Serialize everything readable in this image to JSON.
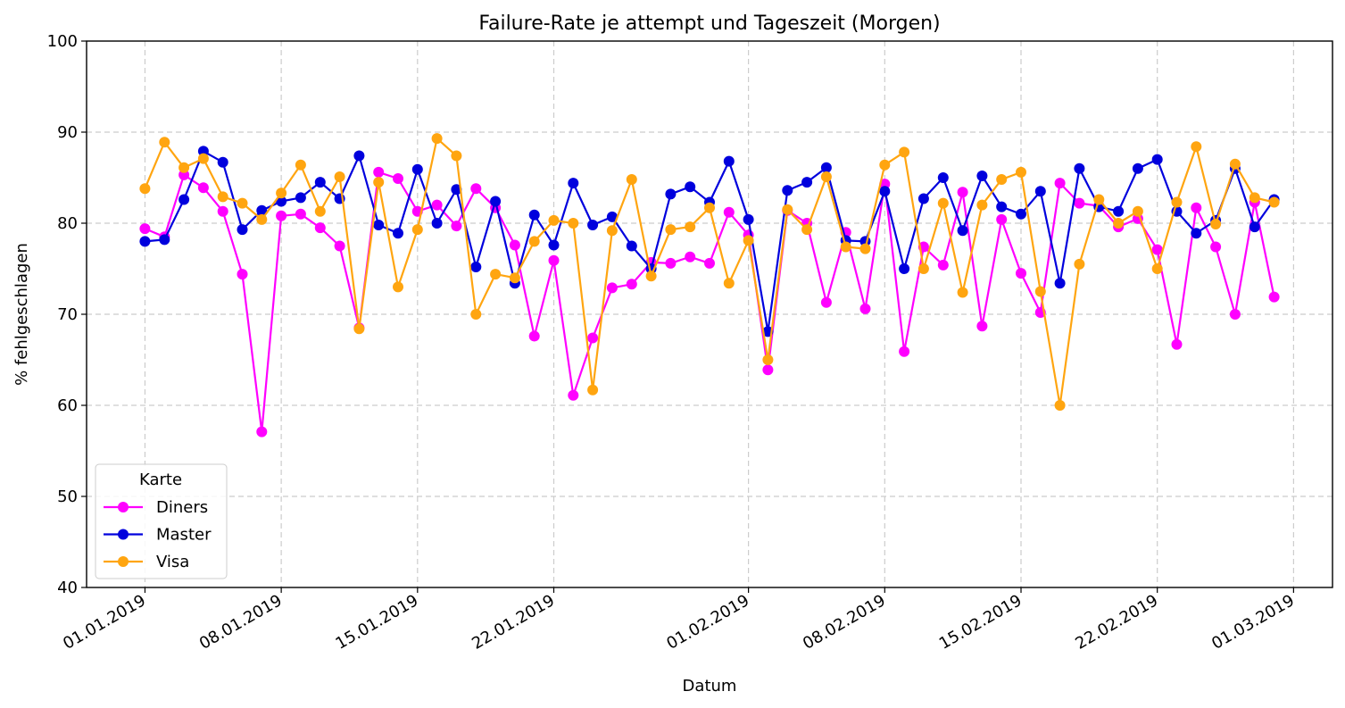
{
  "chart_data": {
    "type": "line",
    "title": "Failure-Rate je attempt und Tageszeit (Morgen)",
    "xlabel": "Datum",
    "ylabel": "% fehlgeschlagen",
    "ylim": [
      40,
      100
    ],
    "yticks": [
      40,
      50,
      60,
      70,
      80,
      90,
      100
    ],
    "xlim": [
      "2018-12-29",
      "2019-03-03"
    ],
    "xticks": [
      {
        "date": "2019-01-01",
        "label": "01.01.2019"
      },
      {
        "date": "2019-01-08",
        "label": "08.01.2019"
      },
      {
        "date": "2019-01-15",
        "label": "15.01.2019"
      },
      {
        "date": "2019-01-22",
        "label": "22.01.2019"
      },
      {
        "date": "2019-02-01",
        "label": "01.02.2019"
      },
      {
        "date": "2019-02-08",
        "label": "08.02.2019"
      },
      {
        "date": "2019-02-15",
        "label": "15.02.2019"
      },
      {
        "date": "2019-02-22",
        "label": "22.02.2019"
      },
      {
        "date": "2019-03-01",
        "label": "01.03.2019"
      }
    ],
    "grid": true,
    "legend": {
      "title": "Karte",
      "placement": "lower-left"
    },
    "x": [
      "2019-01-01",
      "2019-01-02",
      "2019-01-03",
      "2019-01-04",
      "2019-01-05",
      "2019-01-06",
      "2019-01-07",
      "2019-01-08",
      "2019-01-09",
      "2019-01-10",
      "2019-01-11",
      "2019-01-12",
      "2019-01-13",
      "2019-01-14",
      "2019-01-15",
      "2019-01-16",
      "2019-01-17",
      "2019-01-18",
      "2019-01-19",
      "2019-01-20",
      "2019-01-21",
      "2019-01-22",
      "2019-01-23",
      "2019-01-24",
      "2019-01-25",
      "2019-01-26",
      "2019-01-27",
      "2019-01-28",
      "2019-01-29",
      "2019-01-30",
      "2019-01-31",
      "2019-02-01",
      "2019-02-02",
      "2019-02-03",
      "2019-02-04",
      "2019-02-05",
      "2019-02-06",
      "2019-02-07",
      "2019-02-08",
      "2019-02-09",
      "2019-02-10",
      "2019-02-11",
      "2019-02-12",
      "2019-02-13",
      "2019-02-14",
      "2019-02-15",
      "2019-02-16",
      "2019-02-17",
      "2019-02-18",
      "2019-02-19",
      "2019-02-20",
      "2019-02-21",
      "2019-02-22",
      "2019-02-23",
      "2019-02-24",
      "2019-02-25",
      "2019-02-26",
      "2019-02-27",
      "2019-02-28"
    ],
    "series": [
      {
        "name": "Diners",
        "color": "#ff00ff",
        "values": [
          79.4,
          78.5,
          85.3,
          83.9,
          81.3,
          74.4,
          57.1,
          80.8,
          81.0,
          79.5,
          77.5,
          68.5,
          85.6,
          84.9,
          81.3,
          82.0,
          79.7,
          83.8,
          81.7,
          77.6,
          67.6,
          75.9,
          61.1,
          67.4,
          72.9,
          73.3,
          75.7,
          75.6,
          76.3,
          75.6,
          81.2,
          78.7,
          63.9,
          81.4,
          80.0,
          71.3,
          79.0,
          70.6,
          84.3,
          65.9,
          77.4,
          75.4,
          83.4,
          68.7,
          80.4,
          74.5,
          70.2,
          84.4,
          82.2,
          81.9,
          79.6,
          80.5,
          77.1,
          66.7,
          81.7,
          77.4,
          70.0,
          82.3,
          71.9
        ]
      },
      {
        "name": "Master",
        "color": "#0000dd",
        "values": [
          78.0,
          78.2,
          82.6,
          87.9,
          86.7,
          79.3,
          81.4,
          82.4,
          82.8,
          84.5,
          82.7,
          87.4,
          79.8,
          78.9,
          85.9,
          80.0,
          83.7,
          75.2,
          82.4,
          73.4,
          80.9,
          77.6,
          84.4,
          79.8,
          80.7,
          77.5,
          75.0,
          83.2,
          84.0,
          82.3,
          86.8,
          80.4,
          68.1,
          83.6,
          84.5,
          86.1,
          78.1,
          78.0,
          83.5,
          75.0,
          82.7,
          85.0,
          79.2,
          85.2,
          81.8,
          81.0,
          83.5,
          73.4,
          86.0,
          81.8,
          81.3,
          86.0,
          87.0,
          81.3,
          78.9,
          80.3,
          86.0,
          79.6,
          82.6
        ]
      },
      {
        "name": "Visa",
        "color": "#ffa510",
        "values": [
          83.8,
          88.9,
          86.1,
          87.1,
          82.9,
          82.2,
          80.4,
          83.3,
          86.4,
          81.3,
          85.1,
          68.4,
          84.5,
          73.0,
          79.3,
          89.3,
          87.4,
          70.0,
          74.4,
          74.0,
          78.0,
          80.3,
          80.0,
          61.7,
          79.2,
          84.8,
          74.2,
          79.3,
          79.6,
          81.7,
          73.4,
          78.1,
          65.0,
          81.5,
          79.3,
          85.1,
          77.4,
          77.2,
          86.4,
          87.8,
          75.0,
          82.2,
          72.4,
          82.0,
          84.8,
          85.6,
          72.5,
          60.0,
          75.5,
          82.6,
          80.0,
          81.3,
          75.0,
          82.3,
          88.4,
          79.9,
          86.5,
          82.8,
          82.3
        ]
      }
    ]
  }
}
